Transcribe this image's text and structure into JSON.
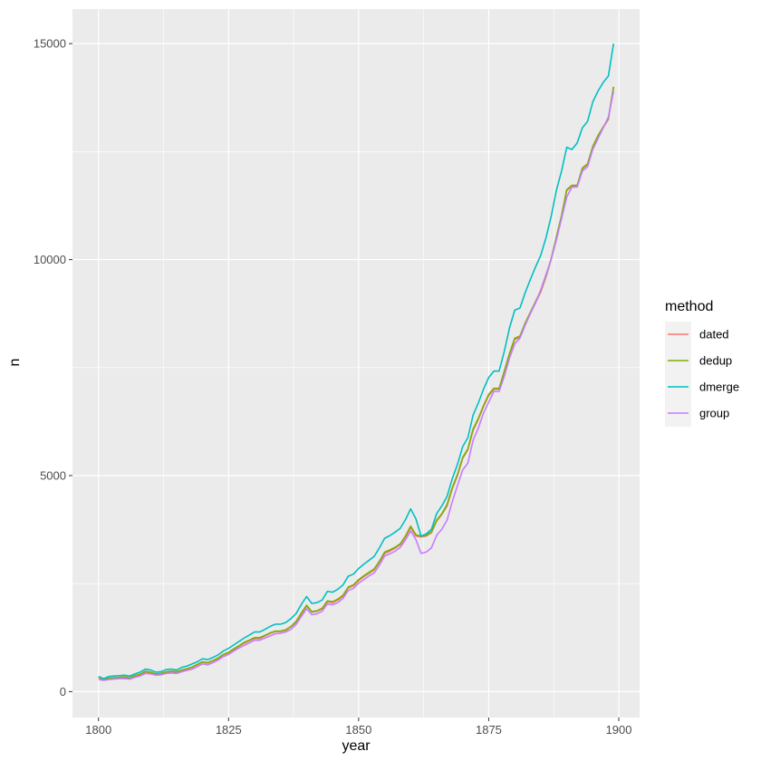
{
  "chart_data": {
    "type": "line",
    "xlabel": "year",
    "ylabel": "n",
    "xlim": [
      1795,
      1904
    ],
    "ylim": [
      -600,
      15800
    ],
    "x_ticks": [
      1800,
      1825,
      1850,
      1875,
      1900
    ],
    "y_ticks": [
      0,
      5000,
      10000,
      15000
    ],
    "legend": {
      "title": "method",
      "position": "right"
    },
    "grid": true,
    "x": [
      1800,
      1801,
      1802,
      1803,
      1804,
      1805,
      1806,
      1807,
      1808,
      1809,
      1810,
      1811,
      1812,
      1813,
      1814,
      1815,
      1816,
      1817,
      1818,
      1819,
      1820,
      1821,
      1822,
      1823,
      1824,
      1825,
      1826,
      1827,
      1828,
      1829,
      1830,
      1831,
      1832,
      1833,
      1834,
      1835,
      1836,
      1837,
      1838,
      1839,
      1840,
      1841,
      1842,
      1843,
      1844,
      1845,
      1846,
      1847,
      1848,
      1849,
      1850,
      1851,
      1852,
      1853,
      1854,
      1855,
      1856,
      1857,
      1858,
      1859,
      1860,
      1861,
      1862,
      1863,
      1864,
      1865,
      1866,
      1867,
      1868,
      1869,
      1870,
      1871,
      1872,
      1873,
      1874,
      1875,
      1876,
      1877,
      1878,
      1879,
      1880,
      1881,
      1882,
      1883,
      1884,
      1885,
      1886,
      1887,
      1888,
      1889,
      1890,
      1891,
      1892,
      1893,
      1894,
      1895,
      1896,
      1897,
      1898,
      1899
    ],
    "series": [
      {
        "name": "dated",
        "color": "#F8766D",
        "values": [
          330,
          270,
          300,
          310,
          320,
          330,
          310,
          360,
          390,
          450,
          440,
          400,
          410,
          450,
          460,
          450,
          490,
          520,
          560,
          620,
          680,
          660,
          710,
          760,
          850,
          900,
          970,
          1050,
          1120,
          1180,
          1230,
          1230,
          1290,
          1350,
          1390,
          1390,
          1420,
          1500,
          1610,
          1800,
          1980,
          1840,
          1860,
          1910,
          2080,
          2060,
          2120,
          2210,
          2400,
          2450,
          2570,
          2660,
          2740,
          2820,
          3000,
          3200,
          3250,
          3320,
          3400,
          3580,
          3800,
          3600,
          3580,
          3600,
          3680,
          3950,
          4100,
          4300,
          4700,
          5000,
          5400,
          5600,
          6050,
          6300,
          6600,
          6850,
          7000,
          7000,
          7400,
          7800,
          8150,
          8200,
          8500,
          8750,
          9000,
          9250,
          9600,
          10000,
          10500,
          11000,
          11600,
          11700,
          11700,
          12100,
          12200,
          12600,
          12850,
          13050,
          13250,
          14000
        ]
      },
      {
        "name": "dedup",
        "color": "#7CAE00",
        "values": [
          340,
          280,
          310,
          320,
          330,
          340,
          320,
          370,
          400,
          470,
          450,
          410,
          420,
          460,
          470,
          460,
          500,
          530,
          570,
          630,
          690,
          670,
          720,
          780,
          860,
          910,
          990,
          1060,
          1140,
          1190,
          1250,
          1250,
          1300,
          1360,
          1400,
          1400,
          1430,
          1510,
          1630,
          1820,
          2000,
          1850,
          1870,
          1930,
          2100,
          2080,
          2140,
          2230,
          2420,
          2470,
          2590,
          2680,
          2760,
          2840,
          3020,
          3230,
          3280,
          3340,
          3420,
          3600,
          3830,
          3630,
          3600,
          3620,
          3700,
          3970,
          4120,
          4330,
          4720,
          5030,
          5420,
          5620,
          6080,
          6320,
          6620,
          6880,
          7020,
          7020,
          7420,
          7830,
          8180,
          8230,
          8530,
          8780,
          9030,
          9280,
          9620,
          10020,
          10520,
          11020,
          11620,
          11720,
          11720,
          12120,
          12220,
          12620,
          12870,
          13070,
          13270,
          14000
        ]
      },
      {
        "name": "dmerge",
        "color": "#00BFC4",
        "values": [
          350,
          300,
          350,
          360,
          370,
          380,
          360,
          410,
          450,
          520,
          500,
          450,
          460,
          510,
          520,
          500,
          560,
          590,
          640,
          690,
          760,
          740,
          790,
          850,
          940,
          1000,
          1080,
          1160,
          1240,
          1310,
          1380,
          1380,
          1440,
          1510,
          1560,
          1560,
          1600,
          1690,
          1810,
          2020,
          2200,
          2040,
          2060,
          2120,
          2320,
          2300,
          2370,
          2470,
          2670,
          2720,
          2850,
          2950,
          3040,
          3130,
          3330,
          3550,
          3610,
          3690,
          3780,
          3980,
          4230,
          4000,
          3600,
          3650,
          3760,
          4120,
          4300,
          4520,
          4930,
          5260,
          5670,
          5880,
          6400,
          6680,
          7000,
          7270,
          7420,
          7420,
          7880,
          8420,
          8830,
          8880,
          9230,
          9540,
          9830,
          10100,
          10500,
          11000,
          11600,
          12050,
          12600,
          12550,
          12700,
          13050,
          13200,
          13650,
          13900,
          14100,
          14250,
          15000
        ]
      },
      {
        "name": "group",
        "color": "#C77CFF",
        "values": [
          280,
          260,
          280,
          290,
          300,
          300,
          290,
          330,
          360,
          420,
          410,
          380,
          390,
          420,
          430,
          420,
          460,
          490,
          520,
          580,
          640,
          620,
          670,
          730,
          810,
          860,
          940,
          1010,
          1070,
          1130,
          1190,
          1190,
          1240,
          1290,
          1340,
          1350,
          1380,
          1440,
          1560,
          1740,
          1920,
          1780,
          1800,
          1860,
          2030,
          2010,
          2060,
          2160,
          2340,
          2390,
          2510,
          2590,
          2680,
          2750,
          2930,
          3140,
          3190,
          3250,
          3340,
          3510,
          3720,
          3520,
          3200,
          3230,
          3330,
          3620,
          3760,
          3970,
          4400,
          4770,
          5130,
          5290,
          5820,
          6100,
          6450,
          6700,
          6950,
          6950,
          7300,
          7720,
          8050,
          8180,
          8480,
          8750,
          9000,
          9300,
          9650,
          10000,
          10450,
          10950,
          11450,
          11680,
          11680,
          12050,
          12150,
          12550,
          12800,
          13050,
          13300,
          13900
        ]
      }
    ]
  }
}
